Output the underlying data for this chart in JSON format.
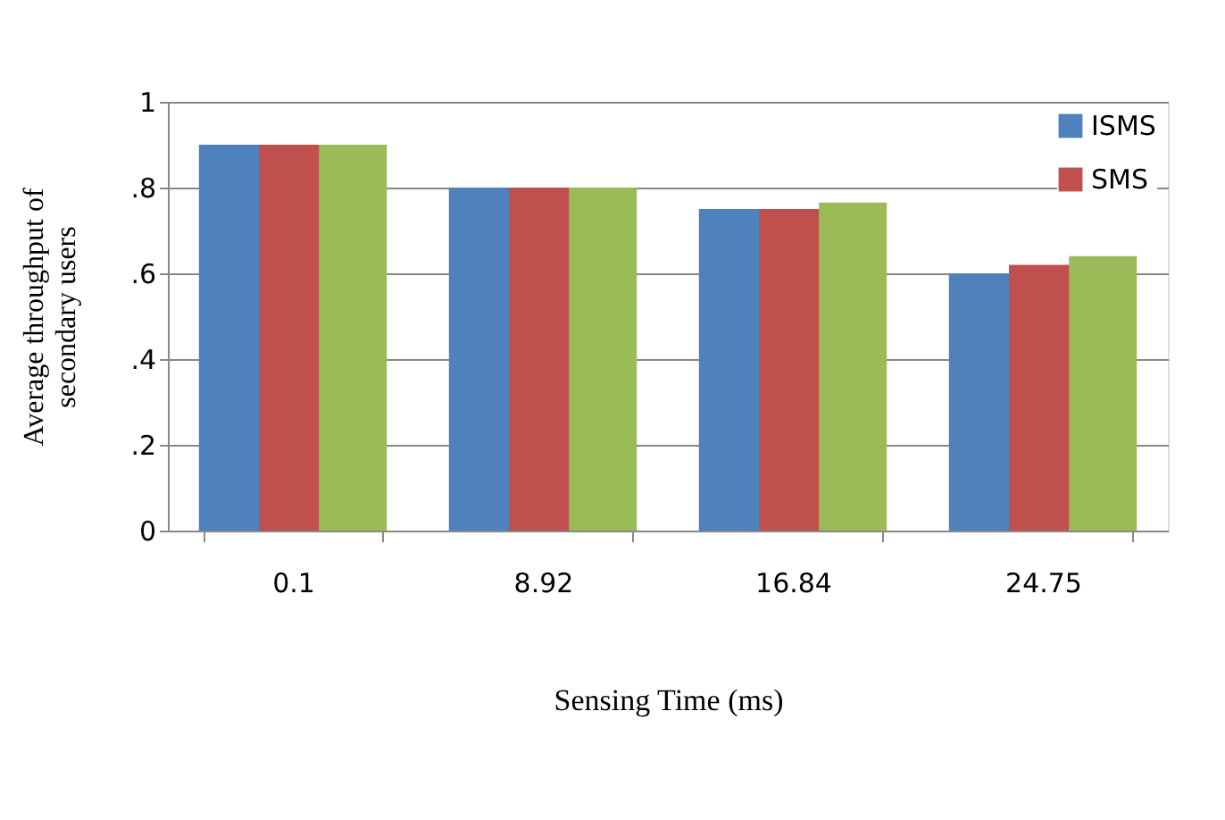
{
  "chart_data": {
    "type": "bar",
    "xlabel": "Sensing Time (ms)",
    "ylabel": "Average throughput of\nsecondary users",
    "categories": [
      "0.1",
      "8.92",
      "16.84",
      "24.75"
    ],
    "series": [
      {
        "name": "ISMS",
        "color": "#4f81bd",
        "values": [
          0.9,
          0.8,
          0.75,
          0.6
        ]
      },
      {
        "name": "SMS",
        "color": "#c0504d",
        "values": [
          0.9,
          0.8,
          0.75,
          0.62
        ]
      },
      {
        "color": "#9bbb59",
        "values": [
          0.9,
          0.8,
          0.765,
          0.64
        ]
      }
    ],
    "ylim": [
      0,
      1
    ],
    "yticks": [
      0,
      {
        "value": 0.2,
        "label": ".2"
      },
      {
        "value": 0.4,
        "label": ".4"
      },
      {
        "value": 0.6,
        "label": ".6"
      },
      {
        "value": 0.8,
        "label": ".8"
      },
      1
    ],
    "grid": "y",
    "legend": "top right"
  }
}
